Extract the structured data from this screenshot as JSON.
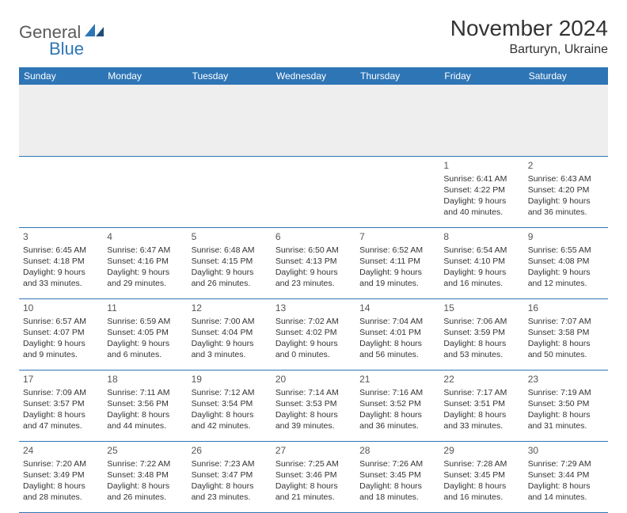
{
  "brand": {
    "line1": "General",
    "line2": "Blue"
  },
  "title": "November 2024",
  "location": "Barturyn, Ukraine",
  "colors": {
    "header_bg": "#2e75b6",
    "header_text": "#ffffff",
    "border": "#2e75b6",
    "text": "#333333",
    "spacer": "#eeeeee"
  },
  "columns": [
    "Sunday",
    "Monday",
    "Tuesday",
    "Wednesday",
    "Thursday",
    "Friday",
    "Saturday"
  ],
  "weeks": [
    [
      null,
      null,
      null,
      null,
      null,
      {
        "d": "1",
        "sr": "Sunrise: 6:41 AM",
        "ss": "Sunset: 4:22 PM",
        "dl": "Daylight: 9 hours and 40 minutes."
      },
      {
        "d": "2",
        "sr": "Sunrise: 6:43 AM",
        "ss": "Sunset: 4:20 PM",
        "dl": "Daylight: 9 hours and 36 minutes."
      }
    ],
    [
      {
        "d": "3",
        "sr": "Sunrise: 6:45 AM",
        "ss": "Sunset: 4:18 PM",
        "dl": "Daylight: 9 hours and 33 minutes."
      },
      {
        "d": "4",
        "sr": "Sunrise: 6:47 AM",
        "ss": "Sunset: 4:16 PM",
        "dl": "Daylight: 9 hours and 29 minutes."
      },
      {
        "d": "5",
        "sr": "Sunrise: 6:48 AM",
        "ss": "Sunset: 4:15 PM",
        "dl": "Daylight: 9 hours and 26 minutes."
      },
      {
        "d": "6",
        "sr": "Sunrise: 6:50 AM",
        "ss": "Sunset: 4:13 PM",
        "dl": "Daylight: 9 hours and 23 minutes."
      },
      {
        "d": "7",
        "sr": "Sunrise: 6:52 AM",
        "ss": "Sunset: 4:11 PM",
        "dl": "Daylight: 9 hours and 19 minutes."
      },
      {
        "d": "8",
        "sr": "Sunrise: 6:54 AM",
        "ss": "Sunset: 4:10 PM",
        "dl": "Daylight: 9 hours and 16 minutes."
      },
      {
        "d": "9",
        "sr": "Sunrise: 6:55 AM",
        "ss": "Sunset: 4:08 PM",
        "dl": "Daylight: 9 hours and 12 minutes."
      }
    ],
    [
      {
        "d": "10",
        "sr": "Sunrise: 6:57 AM",
        "ss": "Sunset: 4:07 PM",
        "dl": "Daylight: 9 hours and 9 minutes."
      },
      {
        "d": "11",
        "sr": "Sunrise: 6:59 AM",
        "ss": "Sunset: 4:05 PM",
        "dl": "Daylight: 9 hours and 6 minutes."
      },
      {
        "d": "12",
        "sr": "Sunrise: 7:00 AM",
        "ss": "Sunset: 4:04 PM",
        "dl": "Daylight: 9 hours and 3 minutes."
      },
      {
        "d": "13",
        "sr": "Sunrise: 7:02 AM",
        "ss": "Sunset: 4:02 PM",
        "dl": "Daylight: 9 hours and 0 minutes."
      },
      {
        "d": "14",
        "sr": "Sunrise: 7:04 AM",
        "ss": "Sunset: 4:01 PM",
        "dl": "Daylight: 8 hours and 56 minutes."
      },
      {
        "d": "15",
        "sr": "Sunrise: 7:06 AM",
        "ss": "Sunset: 3:59 PM",
        "dl": "Daylight: 8 hours and 53 minutes."
      },
      {
        "d": "16",
        "sr": "Sunrise: 7:07 AM",
        "ss": "Sunset: 3:58 PM",
        "dl": "Daylight: 8 hours and 50 minutes."
      }
    ],
    [
      {
        "d": "17",
        "sr": "Sunrise: 7:09 AM",
        "ss": "Sunset: 3:57 PM",
        "dl": "Daylight: 8 hours and 47 minutes."
      },
      {
        "d": "18",
        "sr": "Sunrise: 7:11 AM",
        "ss": "Sunset: 3:56 PM",
        "dl": "Daylight: 8 hours and 44 minutes."
      },
      {
        "d": "19",
        "sr": "Sunrise: 7:12 AM",
        "ss": "Sunset: 3:54 PM",
        "dl": "Daylight: 8 hours and 42 minutes."
      },
      {
        "d": "20",
        "sr": "Sunrise: 7:14 AM",
        "ss": "Sunset: 3:53 PM",
        "dl": "Daylight: 8 hours and 39 minutes."
      },
      {
        "d": "21",
        "sr": "Sunrise: 7:16 AM",
        "ss": "Sunset: 3:52 PM",
        "dl": "Daylight: 8 hours and 36 minutes."
      },
      {
        "d": "22",
        "sr": "Sunrise: 7:17 AM",
        "ss": "Sunset: 3:51 PM",
        "dl": "Daylight: 8 hours and 33 minutes."
      },
      {
        "d": "23",
        "sr": "Sunrise: 7:19 AM",
        "ss": "Sunset: 3:50 PM",
        "dl": "Daylight: 8 hours and 31 minutes."
      }
    ],
    [
      {
        "d": "24",
        "sr": "Sunrise: 7:20 AM",
        "ss": "Sunset: 3:49 PM",
        "dl": "Daylight: 8 hours and 28 minutes."
      },
      {
        "d": "25",
        "sr": "Sunrise: 7:22 AM",
        "ss": "Sunset: 3:48 PM",
        "dl": "Daylight: 8 hours and 26 minutes."
      },
      {
        "d": "26",
        "sr": "Sunrise: 7:23 AM",
        "ss": "Sunset: 3:47 PM",
        "dl": "Daylight: 8 hours and 23 minutes."
      },
      {
        "d": "27",
        "sr": "Sunrise: 7:25 AM",
        "ss": "Sunset: 3:46 PM",
        "dl": "Daylight: 8 hours and 21 minutes."
      },
      {
        "d": "28",
        "sr": "Sunrise: 7:26 AM",
        "ss": "Sunset: 3:45 PM",
        "dl": "Daylight: 8 hours and 18 minutes."
      },
      {
        "d": "29",
        "sr": "Sunrise: 7:28 AM",
        "ss": "Sunset: 3:45 PM",
        "dl": "Daylight: 8 hours and 16 minutes."
      },
      {
        "d": "30",
        "sr": "Sunrise: 7:29 AM",
        "ss": "Sunset: 3:44 PM",
        "dl": "Daylight: 8 hours and 14 minutes."
      }
    ]
  ]
}
